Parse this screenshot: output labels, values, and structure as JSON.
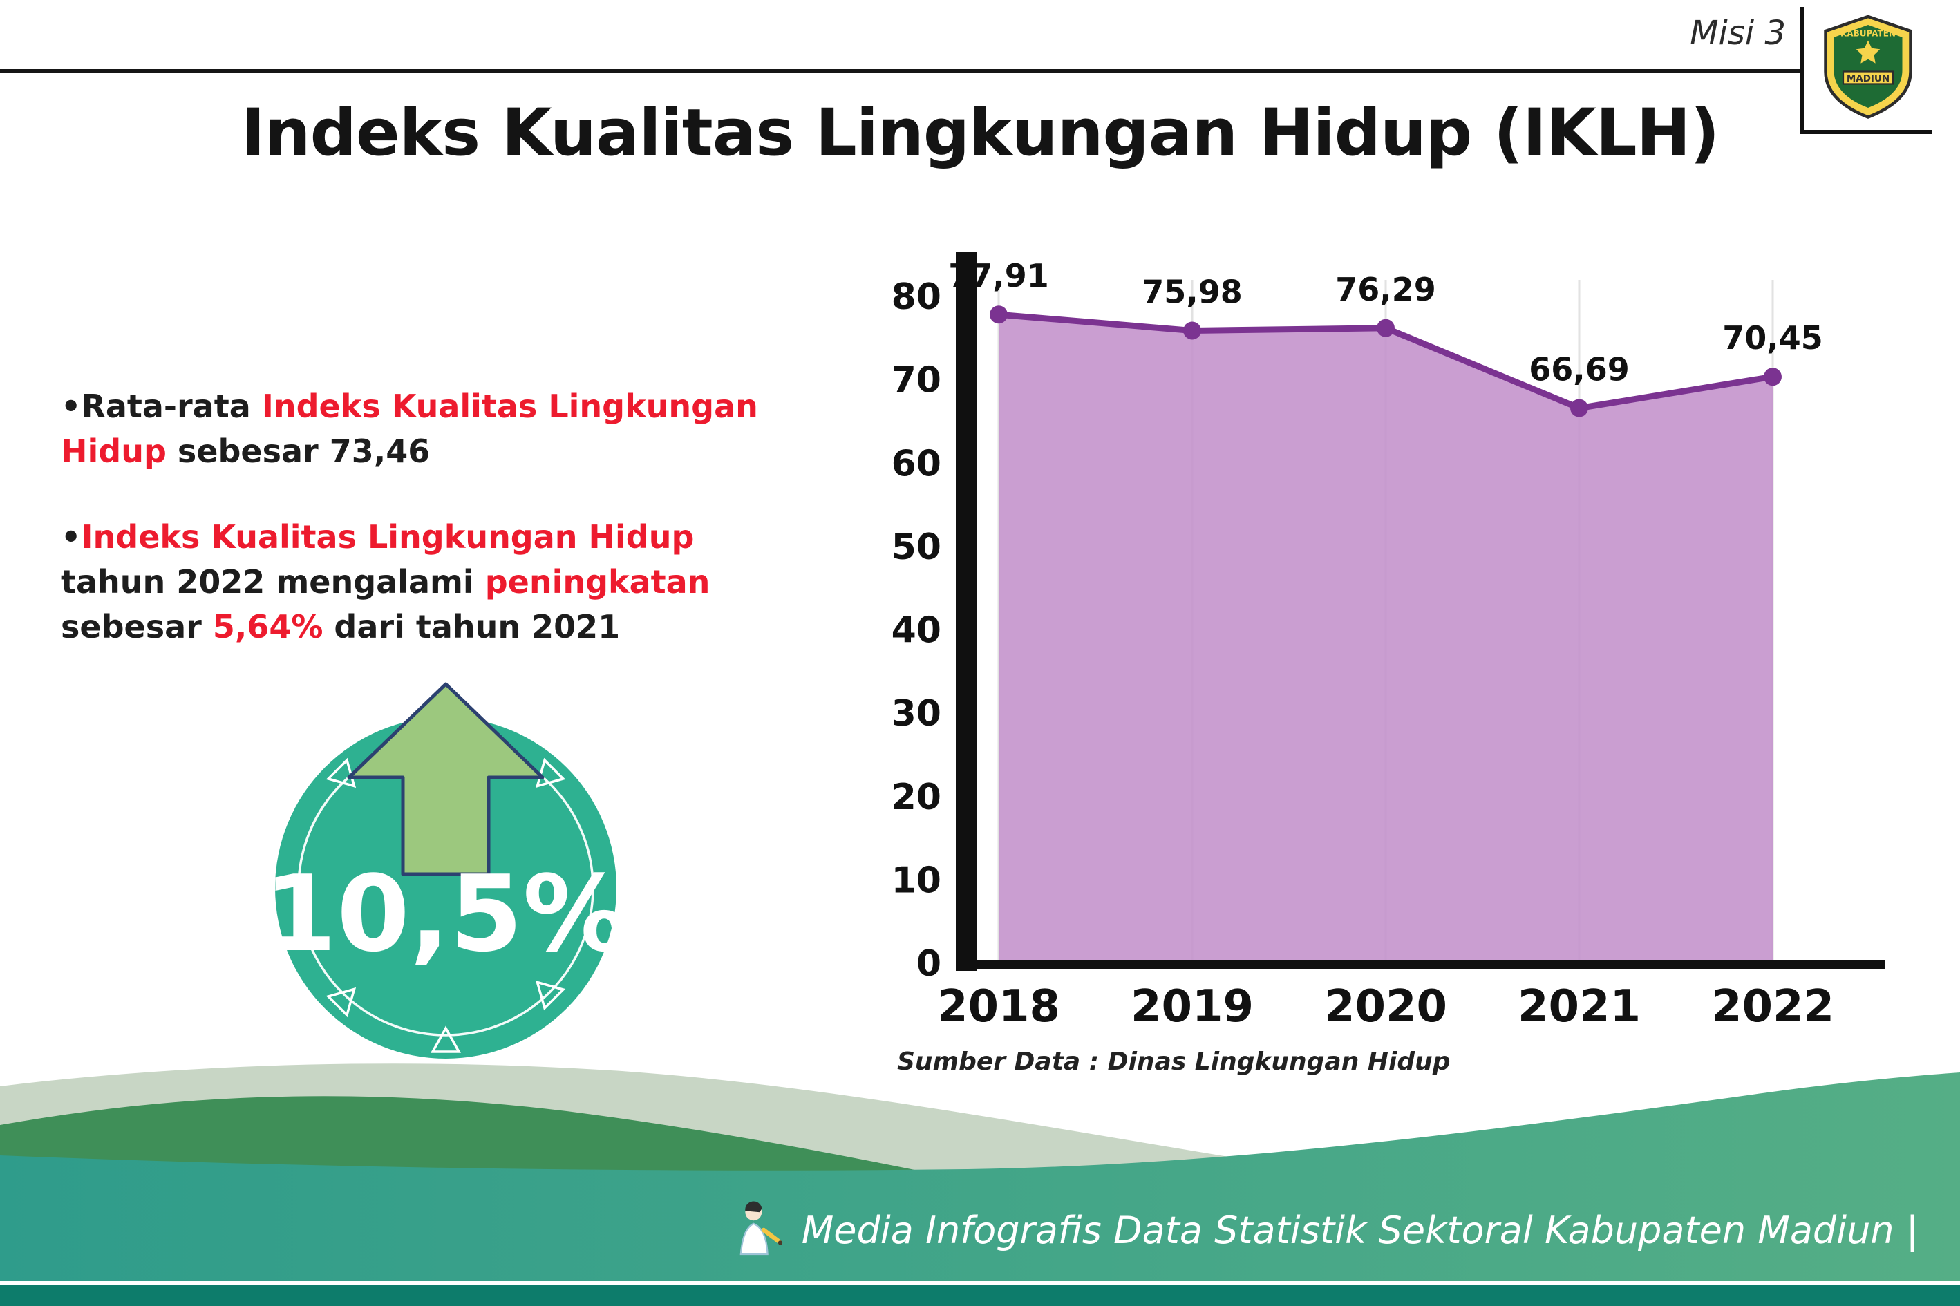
{
  "header": {
    "misi_label": "Misi 3",
    "title": "Indeks Kualitas Lingkungan Hidup (IKLH)",
    "logo": {
      "top_text": "KABUPATEN",
      "bottom_text": "MADIUN"
    }
  },
  "bullets": {
    "bullet1": [
      {
        "t": "•",
        "c": "dark"
      },
      {
        "t": "Rata-rata ",
        "c": "dark"
      },
      {
        "t": "Indeks Kualitas Lingkungan Hidup",
        "c": "red"
      },
      {
        "t": " sebesar 73,46",
        "c": "dark"
      }
    ],
    "bullet2": [
      {
        "t": "•",
        "c": "dark"
      },
      {
        "t": "Indeks Kualitas Lingkungan Hidup",
        "c": "red"
      },
      {
        "t": " tahun 2022 mengalami ",
        "c": "dark"
      },
      {
        "t": "peningkatan",
        "c": "red"
      },
      {
        "t": " sebesar ",
        "c": "dark"
      },
      {
        "t": "5,64%",
        "c": "red"
      },
      {
        "t": " dari tahun 2021",
        "c": "dark"
      }
    ]
  },
  "badge": {
    "value": "10,5%"
  },
  "chart_data": {
    "type": "area",
    "title": "Indeks Kualitas Lingkungan Hidup (IKLH)",
    "categories": [
      "2018",
      "2019",
      "2020",
      "2021",
      "2022"
    ],
    "values": [
      77.91,
      75.98,
      76.29,
      66.69,
      70.45
    ],
    "value_labels": [
      "77,91",
      "75,98",
      "76,29",
      "66,69",
      "70,45"
    ],
    "ylim": [
      0,
      80
    ],
    "yticks": [
      0,
      10,
      20,
      30,
      40,
      50,
      60,
      70,
      80
    ],
    "grid": "vertical-light",
    "legend": "none",
    "line_color": "#7b3391",
    "fill_color": "#c493cc",
    "source": "Sumber Data : Dinas Lingkungan Hidup"
  },
  "footer": {
    "credit": "Media Infografis Data Statistik Sektoral Kabupaten Madiun |"
  },
  "colors": {
    "accent_red": "#ed1b2e",
    "badge_teal": "#2eb191",
    "arrow_green": "#9cc87e",
    "arrow_outline": "#2c4170",
    "chart_line": "#7b3391",
    "chart_fill": "#c493cc",
    "footer_sage": "#c8d6c5",
    "footer_green": "#3f8f58",
    "footer_teal": "#2f9c8b",
    "footer_strip": "#0d7c6b"
  }
}
